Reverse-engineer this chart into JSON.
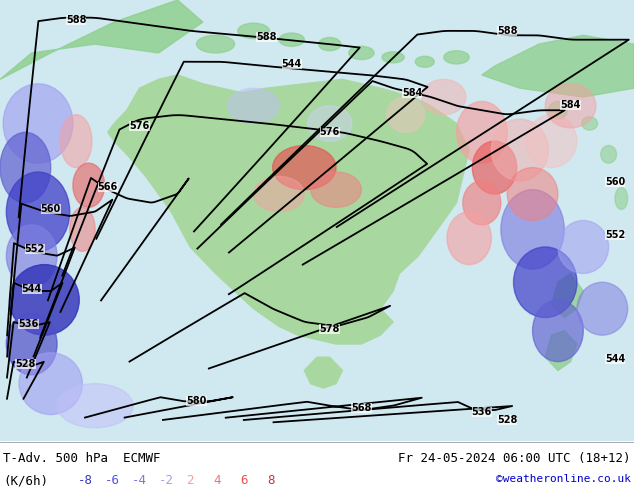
{
  "title_left": "T-Adv. 500 hPa  ECMWF",
  "title_right": "Fr 24-05-2024 06:00 UTC (18+12)",
  "unit_label": "(K/6h)",
  "legend_values": [
    "-8",
    "-6",
    "-4",
    "-2",
    "2",
    "4",
    "6",
    "8"
  ],
  "legend_colors": [
    "#3636c8",
    "#5050e8",
    "#7878e8",
    "#a0a0f0",
    "#f0a0a0",
    "#e87878",
    "#e85050",
    "#c83636"
  ],
  "copyright": "©weatheronline.co.uk",
  "copyright_color": "#0000cc",
  "bg_color": "#ffffff",
  "label_color": "#000000",
  "figsize": [
    6.34,
    4.9
  ],
  "dpi": 100,
  "land_color": "#90d090",
  "sea_color": "#d0e8f0",
  "australia_green": "#a8d8a0"
}
